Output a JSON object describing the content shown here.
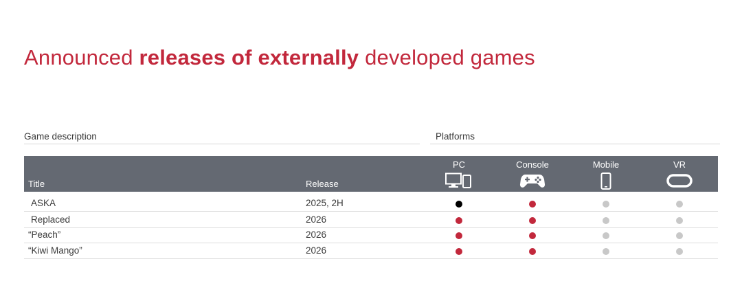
{
  "heading": {
    "prefix": "Announced ",
    "bold": "releases of externally",
    "suffix": " developed games"
  },
  "sections": {
    "left": "Game description",
    "right": "Platforms"
  },
  "columns": {
    "title": "Title",
    "release": "Release",
    "platforms": [
      {
        "label": "PC",
        "icon": "pc-tablet-icon"
      },
      {
        "label": "Console",
        "icon": "gamepad-icon"
      },
      {
        "label": "Mobile",
        "icon": "smartphone-icon"
      },
      {
        "label": "VR",
        "icon": "vr-headset-icon"
      }
    ]
  },
  "status_colors": {
    "released": "#000000",
    "announced": "#c2283c",
    "none": "#c8c8c8"
  },
  "rows": [
    {
      "title": "ASKA",
      "release": "2025, 2H",
      "platforms": [
        "released",
        "announced",
        "none",
        "none"
      ]
    },
    {
      "title": "Replaced",
      "release": "2026",
      "platforms": [
        "announced",
        "announced",
        "none",
        "none"
      ]
    },
    {
      "title": "“Peach”",
      "release": "2026",
      "platforms": [
        "announced",
        "announced",
        "none",
        "none"
      ]
    },
    {
      "title": "“Kiwi Mango”",
      "release": "2026",
      "platforms": [
        "announced",
        "announced",
        "none",
        "none"
      ]
    }
  ]
}
